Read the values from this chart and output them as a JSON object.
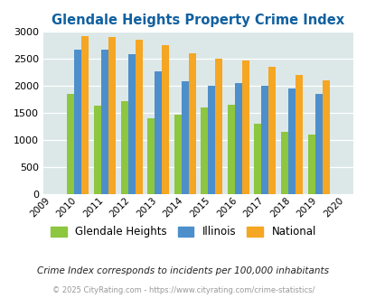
{
  "title": "Glendale Heights Property Crime Index",
  "all_years": [
    2009,
    2010,
    2011,
    2012,
    2013,
    2014,
    2015,
    2016,
    2017,
    2018,
    2019,
    2020
  ],
  "data_years": [
    2010,
    2011,
    2012,
    2013,
    2014,
    2015,
    2016,
    2017,
    2018,
    2019
  ],
  "glendale_heights": [
    1850,
    1640,
    1720,
    1400,
    1480,
    1610,
    1650,
    1300,
    1160,
    1110
  ],
  "illinois": [
    2670,
    2670,
    2590,
    2280,
    2090,
    2000,
    2060,
    2010,
    1950,
    1850
  ],
  "national": [
    2930,
    2900,
    2860,
    2750,
    2610,
    2500,
    2470,
    2360,
    2200,
    2100
  ],
  "glendale_color": "#8dc63f",
  "illinois_color": "#4d8fcb",
  "national_color": "#f5a623",
  "background_color": "#dce8e8",
  "title_color": "#1060a0",
  "ylim": [
    0,
    3000
  ],
  "yticks": [
    0,
    500,
    1000,
    1500,
    2000,
    2500,
    3000
  ],
  "footer_text1": "Crime Index corresponds to incidents per 100,000 inhabitants",
  "footer_text2": "© 2025 CityRating.com - https://www.cityrating.com/crime-statistics/",
  "legend_labels": [
    "Glendale Heights",
    "Illinois",
    "National"
  ]
}
